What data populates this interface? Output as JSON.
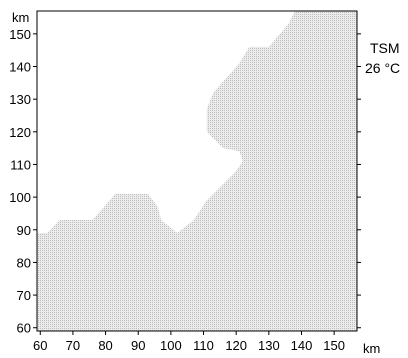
{
  "map": {
    "x_unit": "km",
    "y_unit": "km",
    "x_ticks": [
      60,
      70,
      80,
      90,
      100,
      110,
      120,
      130,
      140,
      150
    ],
    "y_ticks": [
      60,
      70,
      80,
      90,
      100,
      110,
      120,
      130,
      140,
      150
    ],
    "xlim": [
      59,
      157
    ],
    "ylim": [
      59,
      157
    ],
    "variable_label": "TSM",
    "variable_value": "26 °C",
    "land_color": "#d9d9d9",
    "sea_color": "#ffffff",
    "land_boundary_km": [
      [
        59,
        59
      ],
      [
        59,
        89
      ],
      [
        62,
        89
      ],
      [
        66,
        93
      ],
      [
        76,
        93
      ],
      [
        83,
        101
      ],
      [
        93,
        101
      ],
      [
        96,
        97
      ],
      [
        97,
        93
      ],
      [
        102,
        89
      ],
      [
        107,
        93
      ],
      [
        111,
        99
      ],
      [
        116,
        104
      ],
      [
        120,
        108
      ],
      [
        122,
        111
      ],
      [
        121,
        114
      ],
      [
        116,
        115
      ],
      [
        111,
        120
      ],
      [
        111,
        127
      ],
      [
        113,
        132
      ],
      [
        121,
        141
      ],
      [
        124,
        146
      ],
      [
        130,
        146
      ],
      [
        136,
        153
      ],
      [
        138,
        157
      ],
      [
        157,
        157
      ],
      [
        157,
        59
      ]
    ]
  }
}
